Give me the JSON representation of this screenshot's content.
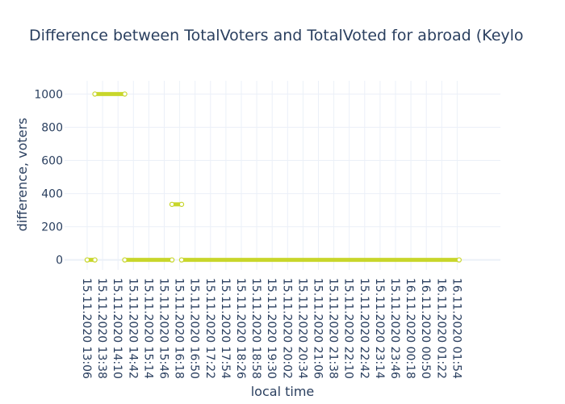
{
  "chart_data": {
    "type": "line",
    "title": "Difference between TotalVoters and TotalVoted for abroad (Keylo",
    "xlabel": "local time",
    "ylabel": "difference, voters",
    "ylim": [
      -60,
      1080
    ],
    "yticks": [
      0,
      200,
      400,
      600,
      800,
      1000
    ],
    "grid": true,
    "legend": "none",
    "xticks": [
      "15.11.2020 13:06",
      "15.11.2020 13:38",
      "15.11.2020 14:10",
      "15.11.2020 14:42",
      "15.11.2020 15:14",
      "15.11.2020 15:46",
      "15.11.2020 16:18",
      "15.11.2020 16:50",
      "15.11.2020 17:22",
      "15.11.2020 17:54",
      "15.11.2020 18:26",
      "15.11.2020 18:58",
      "15.11.2020 19:30",
      "15.11.2020 20:02",
      "15.11.2020 20:34",
      "15.11.2020 21:06",
      "15.11.2020 21:38",
      "15.11.2020 22:10",
      "15.11.2020 22:42",
      "15.11.2020 23:14",
      "15.11.2020 23:46",
      "16.11.2020 00:18",
      "16.11.2020 00:50",
      "16.11.2020 01:22",
      "16.11.2020 01:54"
    ],
    "series": [
      {
        "color": "#c8d62b",
        "segments": [
          {
            "x_start": "15.11.2020 13:06",
            "x_end": "15.11.2020 13:22",
            "y": 0
          },
          {
            "x_start": "15.11.2020 13:22",
            "x_end": "15.11.2020 14:24",
            "y": 1000
          },
          {
            "x_start": "15.11.2020 14:24",
            "x_end": "15.11.2020 16:02",
            "y": 0
          },
          {
            "x_start": "15.11.2020 16:02",
            "x_end": "15.11.2020 16:22",
            "y": 335
          },
          {
            "x_start": "15.11.2020 16:22",
            "x_end": "16.11.2020 01:58",
            "y": 0
          }
        ]
      }
    ]
  }
}
